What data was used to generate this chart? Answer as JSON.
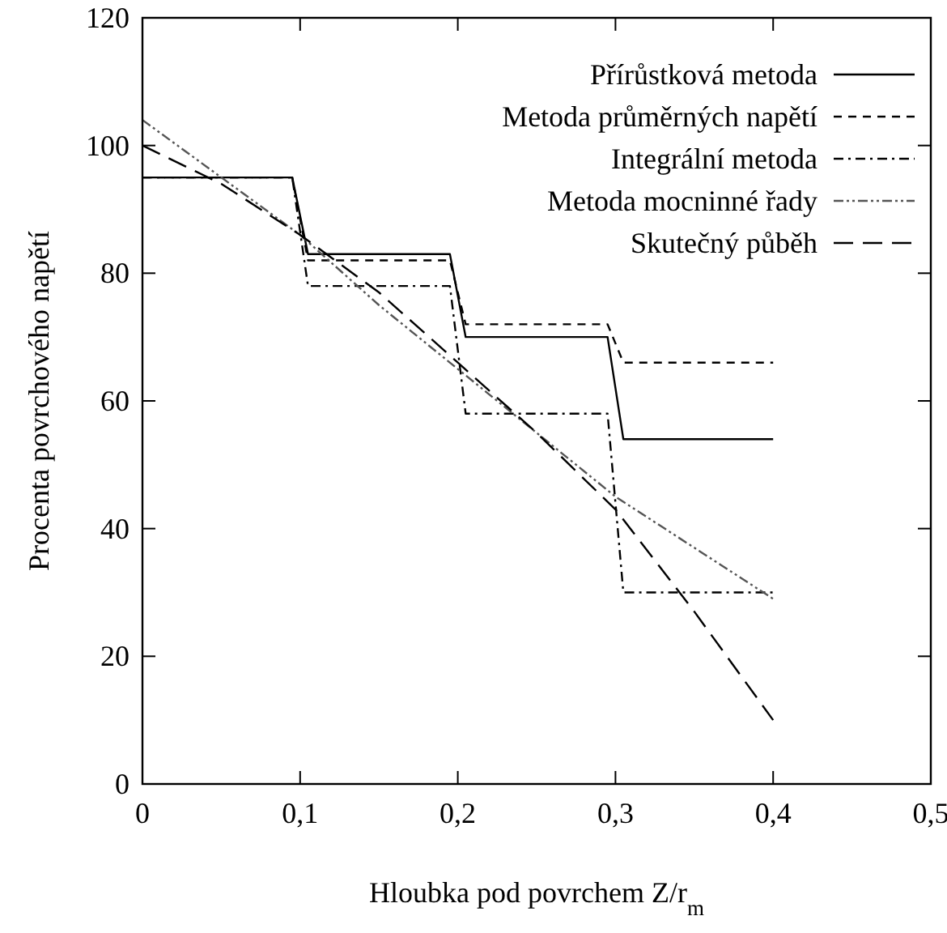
{
  "chart_data": {
    "type": "line",
    "xlabel": "Hloubka pod povrchem Z/r$_{m}$",
    "ylabel": "Procenta povrchového napětí",
    "xlim": [
      0,
      0.5
    ],
    "ylim": [
      0,
      120
    ],
    "xticks": [
      0,
      {
        "value": 0.1,
        "label": "0,1"
      },
      {
        "value": 0.2,
        "label": "0,2"
      },
      {
        "value": 0.3,
        "label": "0,3"
      },
      {
        "value": 0.4,
        "label": "0,4"
      },
      {
        "value": 0.5,
        "label": "0,5"
      }
    ],
    "yticks": [
      0,
      20,
      40,
      60,
      80,
      100,
      120
    ],
    "grid": false,
    "legend": "top right",
    "series": [
      {
        "name": "Přírůstková metoda",
        "color": "#000000",
        "line_style": "solid",
        "x": [
          0,
          0.095,
          0.105,
          0.195,
          0.205,
          0.295,
          0.305,
          0.4
        ],
        "values": [
          95,
          95,
          83,
          83,
          70,
          70,
          54,
          54
        ]
      },
      {
        "name": "Metoda průměrných napětí",
        "color": "#000000",
        "line_style": "dashed",
        "x": [
          0,
          0.095,
          0.105,
          0.195,
          0.205,
          0.295,
          0.305,
          0.4
        ],
        "values": [
          95,
          95,
          82,
          82,
          72,
          72,
          66,
          66
        ]
      },
      {
        "name": "Integrální metoda",
        "color": "#000000",
        "line_style": "dashdot",
        "x": [
          0,
          0.095,
          0.105,
          0.195,
          0.205,
          0.295,
          0.305,
          0.4
        ],
        "values": [
          95,
          95,
          78,
          78,
          58,
          58,
          30,
          30
        ]
      },
      {
        "name": "Metoda mocninné řady",
        "color": "#555555",
        "line_style": "dashdotdot",
        "x": [
          0,
          0.05,
          0.1,
          0.15,
          0.2,
          0.25,
          0.3,
          0.35,
          0.4
        ],
        "values": [
          104,
          95,
          86,
          75,
          65,
          55,
          45,
          37,
          29
        ]
      },
      {
        "name": "Skutečný půběh",
        "color": "#000000",
        "line_style": "longdash",
        "x": [
          0,
          0.05,
          0.1,
          0.15,
          0.2,
          0.25,
          0.3,
          0.35,
          0.4
        ],
        "values": [
          100,
          94,
          86,
          77,
          66,
          55,
          43,
          27,
          10
        ]
      }
    ]
  }
}
